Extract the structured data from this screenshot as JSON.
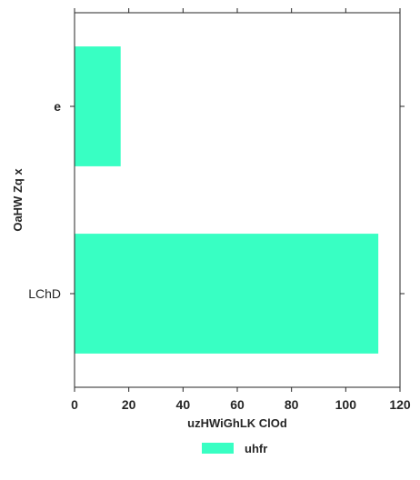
{
  "chart_data": {
    "type": "bar",
    "orientation": "horizontal",
    "categories": [
      "e",
      "LChD"
    ],
    "category_label_bold": [
      true,
      false
    ],
    "series": [
      {
        "name": "uhfr",
        "values": [
          17,
          112
        ],
        "color": "#38ffc3"
      }
    ],
    "xlabel": "uzHWiGhLK ClOd",
    "ylabel": "OaHW Zq x",
    "xlim": [
      0,
      120
    ],
    "xticks": [
      0,
      20,
      40,
      60,
      80,
      100,
      120
    ],
    "grid": false,
    "legend_position": "bottom-center"
  }
}
